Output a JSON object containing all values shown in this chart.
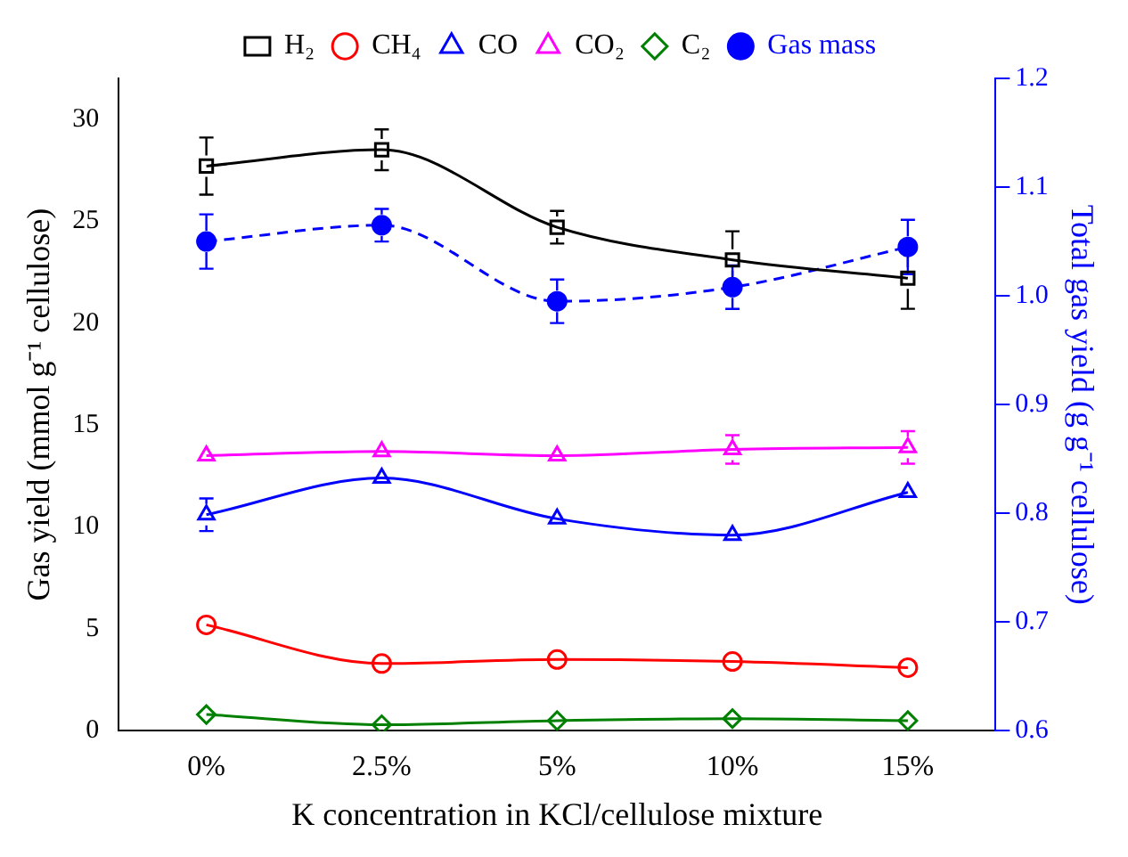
{
  "chart_data": {
    "type": "line",
    "xlabel": "K concentration in KCl/cellulose mixture",
    "ylabel": "Gas yield (mmol g⁻¹ cellulose)",
    "y2label": "Total gas yield (g g⁻¹ cellulose)",
    "categories": [
      "0%",
      "2.5%",
      "5%",
      "10%",
      "15%"
    ],
    "ylim": [
      0,
      32
    ],
    "yticks": [
      0,
      5,
      10,
      15,
      20,
      25,
      30
    ],
    "y2lim": [
      0.6,
      1.2
    ],
    "y2ticks": [
      0.6,
      0.7,
      0.8,
      0.9,
      {
        "value": 1,
        "label": "1.0"
      },
      1.1,
      1.2
    ],
    "grid": false,
    "legend": "top",
    "series": [
      {
        "name": "H₂",
        "color": "#000000",
        "marker": "square",
        "line_style": "solid",
        "values": [
          27.7,
          28.5,
          24.7,
          23.1,
          22.2
        ],
        "errors": [
          1.4,
          1.0,
          0.8,
          1.4,
          1.5
        ]
      },
      {
        "name": "CH₄",
        "color": "#ff0000",
        "marker": "circle",
        "line_style": "solid",
        "values": [
          5.2,
          3.3,
          3.5,
          3.4,
          3.1
        ]
      },
      {
        "name": "CO",
        "color": "#0000ff",
        "marker": "triangle",
        "line_style": "solid",
        "values": [
          10.6,
          12.4,
          10.4,
          9.6,
          11.7
        ],
        "errors": [
          0.8,
          null,
          null,
          null,
          null
        ]
      },
      {
        "name": "CO₂",
        "color": "#ff00ff",
        "marker": "triangle",
        "line_style": "solid",
        "values": [
          13.5,
          13.7,
          13.5,
          13.8,
          13.9
        ],
        "errors": [
          null,
          null,
          null,
          0.7,
          0.8
        ]
      },
      {
        "name": "C₂",
        "color": "#008000",
        "marker": "diamond",
        "line_style": "solid",
        "values": [
          0.8,
          0.3,
          0.5,
          0.6,
          0.5
        ]
      },
      {
        "name": "Gas mass",
        "color": "#0000ff",
        "marker": "circle",
        "line_style": "dashed",
        "axis": "y2",
        "values": [
          1.05,
          1.065,
          0.995,
          1.008,
          1.045
        ],
        "errors": [
          0.025,
          0.015,
          0.02,
          0.02,
          0.025
        ]
      }
    ]
  }
}
